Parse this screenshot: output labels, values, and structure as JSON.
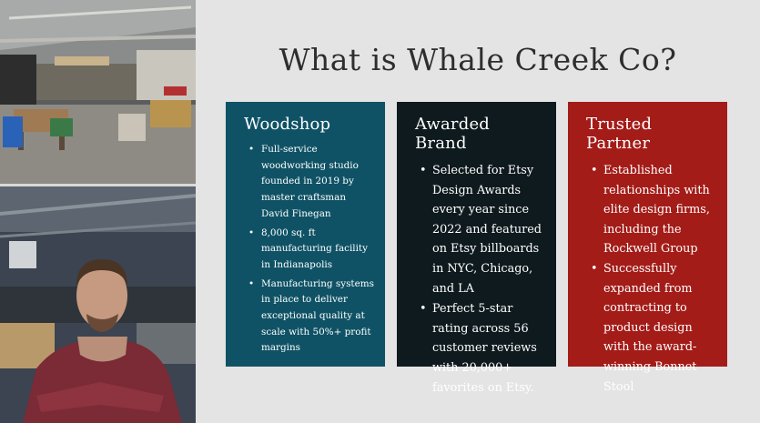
{
  "slide": {
    "title": "What is Whale Creek Co?"
  },
  "photos": {
    "top_icon": "workshop-photo",
    "bottom_icon": "craftsman-portrait-photo"
  },
  "cards": {
    "woodshop": {
      "title": "Woodshop",
      "color": "#0f5265",
      "bullets": [
        "Full-service woodworking studio founded in 2019 by master craftsman David Finegan",
        "8,000 sq. ft manufacturing facility in Indianapolis",
        "Manufacturing systems in place to deliver exceptional quality at scale with 50%+ profit margins"
      ]
    },
    "brand": {
      "title": "Awarded Brand",
      "color": "#0e1a1e",
      "bullets": [
        "Selected for Etsy Design Awards every year since 2022 and featured on Etsy billboards in NYC, Chicago, and LA",
        "Perfect 5-star rating across 56 customer reviews with 20,000+ favorites on Etsy."
      ]
    },
    "partner": {
      "title": "Trusted Partner",
      "color": "#a31c18",
      "bullets": [
        "Established relationships with elite design firms, including the Rockwell Group",
        "Successfully expanded from contracting to product design with the award-winning Bonnet Stool"
      ]
    }
  }
}
